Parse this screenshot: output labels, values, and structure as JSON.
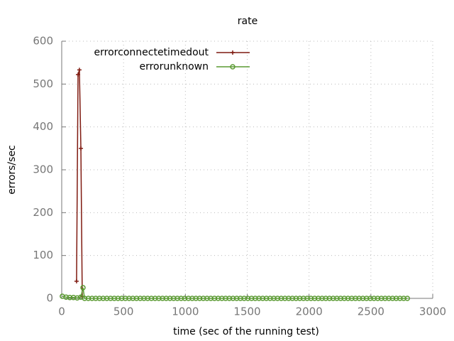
{
  "chart_data": {
    "type": "line",
    "title": "rate",
    "x_label": "time (sec of the running test)",
    "y_label": "errors/sec",
    "xlim": [
      0,
      3000
    ],
    "xticks": [
      0,
      500,
      1000,
      1500,
      2000,
      2500,
      3000
    ],
    "ylim": [
      0,
      600
    ],
    "yticks": [
      0,
      100,
      200,
      300,
      400,
      500,
      600
    ],
    "grid": true,
    "legend": "top-left",
    "series": [
      {
        "name": "errorconnectetimedout",
        "color": "#7f1a10",
        "marker": "plus",
        "x": [
          120,
          132,
          143,
          155,
          166
        ],
        "values": [
          40,
          522,
          533,
          350,
          5
        ]
      },
      {
        "name": "errorunknown",
        "color": "#5a9a32",
        "marker": "circle",
        "x": [
          5,
          35,
          65,
          95,
          125,
          155,
          172,
          185,
          215,
          245,
          275,
          305,
          335,
          365,
          395,
          425,
          455,
          485,
          515,
          545,
          575,
          605,
          635,
          665,
          695,
          725,
          755,
          785,
          815,
          845,
          875,
          905,
          935,
          965,
          995,
          1025,
          1055,
          1085,
          1115,
          1145,
          1175,
          1205,
          1235,
          1265,
          1295,
          1325,
          1355,
          1385,
          1415,
          1445,
          1475,
          1505,
          1535,
          1565,
          1595,
          1625,
          1655,
          1685,
          1715,
          1745,
          1775,
          1805,
          1835,
          1865,
          1895,
          1925,
          1955,
          1985,
          2015,
          2045,
          2075,
          2105,
          2135,
          2165,
          2195,
          2225,
          2255,
          2285,
          2315,
          2345,
          2375,
          2405,
          2435,
          2465,
          2495,
          2525,
          2555,
          2585,
          2615,
          2645,
          2675,
          2705,
          2735,
          2765,
          2795
        ],
        "values": [
          5,
          3,
          2,
          2,
          1,
          3,
          25,
          0,
          0,
          0,
          0,
          0,
          0,
          0,
          0,
          0,
          0,
          0,
          0,
          0,
          0,
          0,
          0,
          0,
          0,
          0,
          0,
          0,
          0,
          0,
          0,
          0,
          0,
          0,
          0,
          0,
          0,
          0,
          0,
          0,
          0,
          0,
          0,
          0,
          0,
          0,
          0,
          0,
          0,
          0,
          0,
          0,
          0,
          0,
          0,
          0,
          0,
          0,
          0,
          0,
          0,
          0,
          0,
          0,
          0,
          0,
          0,
          0,
          0,
          0,
          0,
          0,
          0,
          0,
          0,
          0,
          0,
          0,
          0,
          0,
          0,
          0,
          0,
          0,
          0,
          0,
          0,
          0,
          0,
          0,
          0,
          0,
          0,
          0,
          0
        ]
      }
    ]
  }
}
